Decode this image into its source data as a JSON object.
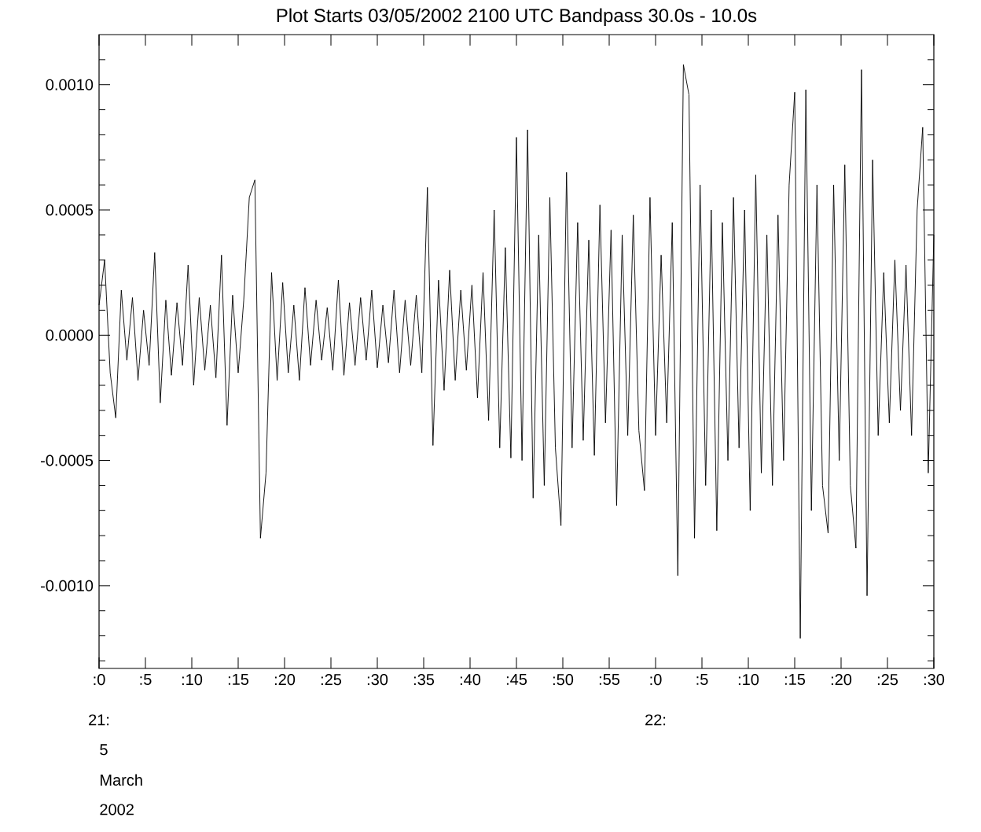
{
  "chart_data": {
    "type": "line",
    "title": "Plot Starts 03/05/2002 2100 UTC Bandpass 30.0s - 10.0s",
    "x": [
      "2002-03-05T21:00:00",
      "2002-03-05T21:00:36",
      "2002-03-05T21:01:12",
      "2002-03-05T21:01:48",
      "2002-03-05T21:02:24",
      "2002-03-05T21:03:00",
      "2002-03-05T21:03:36",
      "2002-03-05T21:04:12",
      "2002-03-05T21:04:48",
      "2002-03-05T21:05:24",
      "2002-03-05T21:06:00",
      "2002-03-05T21:06:36",
      "2002-03-05T21:07:12",
      "2002-03-05T21:07:48",
      "2002-03-05T21:08:24",
      "2002-03-05T21:09:00",
      "2002-03-05T21:09:36",
      "2002-03-05T21:10:12",
      "2002-03-05T21:10:48",
      "2002-03-05T21:11:24",
      "2002-03-05T21:12:00",
      "2002-03-05T21:12:36",
      "2002-03-05T21:13:12",
      "2002-03-05T21:13:48",
      "2002-03-05T21:14:24",
      "2002-03-05T21:15:00",
      "2002-03-05T21:15:36",
      "2002-03-05T21:16:12",
      "2002-03-05T21:16:48",
      "2002-03-05T21:17:24",
      "2002-03-05T21:18:00",
      "2002-03-05T21:18:36",
      "2002-03-05T21:19:12",
      "2002-03-05T21:19:48",
      "2002-03-05T21:20:24",
      "2002-03-05T21:21:00",
      "2002-03-05T21:21:36",
      "2002-03-05T21:22:12",
      "2002-03-05T21:22:48",
      "2002-03-05T21:23:24",
      "2002-03-05T21:24:00",
      "2002-03-05T21:24:36",
      "2002-03-05T21:25:12",
      "2002-03-05T21:25:48",
      "2002-03-05T21:26:24",
      "2002-03-05T21:27:00",
      "2002-03-05T21:27:36",
      "2002-03-05T21:28:12",
      "2002-03-05T21:28:48",
      "2002-03-05T21:29:24",
      "2002-03-05T21:30:00",
      "2002-03-05T21:30:36",
      "2002-03-05T21:31:12",
      "2002-03-05T21:31:48",
      "2002-03-05T21:32:24",
      "2002-03-05T21:33:00",
      "2002-03-05T21:33:36",
      "2002-03-05T21:34:12",
      "2002-03-05T21:34:48",
      "2002-03-05T21:35:24",
      "2002-03-05T21:36:00",
      "2002-03-05T21:36:36",
      "2002-03-05T21:37:12",
      "2002-03-05T21:37:48",
      "2002-03-05T21:38:24",
      "2002-03-05T21:39:00",
      "2002-03-05T21:39:36",
      "2002-03-05T21:40:12",
      "2002-03-05T21:40:48",
      "2002-03-05T21:41:24",
      "2002-03-05T21:42:00",
      "2002-03-05T21:42:36",
      "2002-03-05T21:43:12",
      "2002-03-05T21:43:48",
      "2002-03-05T21:44:24",
      "2002-03-05T21:45:00",
      "2002-03-05T21:45:36",
      "2002-03-05T21:46:12",
      "2002-03-05T21:46:48",
      "2002-03-05T21:47:24",
      "2002-03-05T21:48:00",
      "2002-03-05T21:48:36",
      "2002-03-05T21:49:12",
      "2002-03-05T21:49:48",
      "2002-03-05T21:50:24",
      "2002-03-05T21:51:00",
      "2002-03-05T21:51:36",
      "2002-03-05T21:52:12",
      "2002-03-05T21:52:48",
      "2002-03-05T21:53:24",
      "2002-03-05T21:54:00",
      "2002-03-05T21:54:36",
      "2002-03-05T21:55:12",
      "2002-03-05T21:55:48",
      "2002-03-05T21:56:24",
      "2002-03-05T21:57:00",
      "2002-03-05T21:57:36",
      "2002-03-05T21:58:12",
      "2002-03-05T21:58:48",
      "2002-03-05T21:59:24",
      "2002-03-05T22:00:00",
      "2002-03-05T22:00:36",
      "2002-03-05T22:01:12",
      "2002-03-05T22:01:48",
      "2002-03-05T22:02:24",
      "2002-03-05T22:03:00",
      "2002-03-05T22:03:36",
      "2002-03-05T22:04:12",
      "2002-03-05T22:04:48",
      "2002-03-05T22:05:24",
      "2002-03-05T22:06:00",
      "2002-03-05T22:06:36",
      "2002-03-05T22:07:12",
      "2002-03-05T22:07:48",
      "2002-03-05T22:08:24",
      "2002-03-05T22:09:00",
      "2002-03-05T22:09:36",
      "2002-03-05T22:10:12",
      "2002-03-05T22:10:48",
      "2002-03-05T22:11:24",
      "2002-03-05T22:12:00",
      "2002-03-05T22:12:36",
      "2002-03-05T22:13:12",
      "2002-03-05T22:13:48",
      "2002-03-05T22:14:24",
      "2002-03-05T22:15:00",
      "2002-03-05T22:15:36",
      "2002-03-05T22:16:12",
      "2002-03-05T22:16:48",
      "2002-03-05T22:17:24",
      "2002-03-05T22:18:00",
      "2002-03-05T22:18:36",
      "2002-03-05T22:19:12",
      "2002-03-05T22:19:48",
      "2002-03-05T22:20:24",
      "2002-03-05T22:21:00",
      "2002-03-05T22:21:36",
      "2002-03-05T22:22:12",
      "2002-03-05T22:22:48",
      "2002-03-05T22:23:24",
      "2002-03-05T22:24:00",
      "2002-03-05T22:24:36",
      "2002-03-05T22:25:12",
      "2002-03-05T22:25:48",
      "2002-03-05T22:26:24",
      "2002-03-05T22:27:00",
      "2002-03-05T22:27:36",
      "2002-03-05T22:28:12",
      "2002-03-05T22:28:48",
      "2002-03-05T22:29:24",
      "2002-03-05T22:30:00"
    ],
    "series": [
      {
        "color": "#000000",
        "values": [
          0.00012,
          0.0003,
          -0.00015,
          -0.00033,
          0.00018,
          -0.0001,
          0.00015,
          -0.00018,
          0.0001,
          -0.00012,
          0.00033,
          -0.00027,
          0.00014,
          -0.00016,
          0.00013,
          -0.00012,
          0.00028,
          -0.0002,
          0.00015,
          -0.00014,
          0.00012,
          -0.00017,
          0.00032,
          -0.00036,
          0.00016,
          -0.00015,
          0.00014,
          0.00055,
          0.00062,
          -0.00081,
          -0.00055,
          0.00025,
          -0.00018,
          0.00021,
          -0.00015,
          0.00012,
          -0.00018,
          0.00019,
          -0.00012,
          0.00014,
          -0.0001,
          0.00011,
          -0.00014,
          0.00022,
          -0.00016,
          0.00013,
          -0.00012,
          0.00015,
          -0.0001,
          0.00018,
          -0.00013,
          0.00012,
          -0.00011,
          0.00018,
          -0.00015,
          0.00014,
          -0.00012,
          0.00016,
          -0.00015,
          0.00059,
          -0.00044,
          0.00022,
          -0.00022,
          0.00026,
          -0.00018,
          0.00018,
          -0.00014,
          0.0002,
          -0.00025,
          0.00025,
          -0.00034,
          0.0005,
          -0.00045,
          0.00035,
          -0.00049,
          0.00079,
          -0.0005,
          0.00082,
          -0.00065,
          0.0004,
          -0.0006,
          0.00055,
          -0.00045,
          -0.00076,
          0.00065,
          -0.00045,
          0.00045,
          -0.00042,
          0.00038,
          -0.00048,
          0.00052,
          -0.00035,
          0.00042,
          -0.00068,
          0.0004,
          -0.0004,
          0.00048,
          -0.00038,
          -0.00062,
          0.00055,
          -0.0004,
          0.00032,
          -0.00035,
          0.00045,
          -0.00096,
          0.00108,
          0.00096,
          -0.00081,
          0.0006,
          -0.0006,
          0.0005,
          -0.00078,
          0.00045,
          -0.0005,
          0.00055,
          -0.00045,
          0.0005,
          -0.0007,
          0.00064,
          -0.00055,
          0.0004,
          -0.0006,
          0.00048,
          -0.0005,
          0.0006,
          0.00097,
          -0.00121,
          0.00098,
          -0.0007,
          0.0006,
          -0.0006,
          -0.00079,
          0.0006,
          -0.0005,
          0.00068,
          -0.0006,
          -0.00085,
          0.00106,
          -0.00104,
          0.0007,
          -0.0004,
          0.00025,
          -0.00035,
          0.0003,
          -0.0003,
          0.00028,
          -0.0004,
          0.0005,
          0.00083,
          -0.00055,
          0.0004
        ]
      }
    ],
    "xlim": [
      "2002-03-05T21:00",
      "2002-03-05T22:30"
    ],
    "xticks": [
      {
        "value": "2002-03-05T21:00",
        "label": ":0"
      },
      {
        "value": "2002-03-05T21:05",
        "label": ":5"
      },
      {
        "value": "2002-03-05T21:10",
        "label": ":10"
      },
      {
        "value": "2002-03-05T21:15",
        "label": ":15"
      },
      {
        "value": "2002-03-05T21:20",
        "label": ":20"
      },
      {
        "value": "2002-03-05T21:25",
        "label": ":25"
      },
      {
        "value": "2002-03-05T21:30",
        "label": ":30"
      },
      {
        "value": "2002-03-05T21:35",
        "label": ":35"
      },
      {
        "value": "2002-03-05T21:40",
        "label": ":40"
      },
      {
        "value": "2002-03-05T21:45",
        "label": ":45"
      },
      {
        "value": "2002-03-05T21:50",
        "label": ":50"
      },
      {
        "value": "2002-03-05T21:55",
        "label": ":55"
      },
      {
        "value": "2002-03-05T22:00",
        "label": ":0"
      },
      {
        "value": "2002-03-05T22:05",
        "label": ":5"
      },
      {
        "value": "2002-03-05T22:10",
        "label": ":10"
      },
      {
        "value": "2002-03-05T22:15",
        "label": ":15"
      },
      {
        "value": "2002-03-05T22:20",
        "label": ":20"
      },
      {
        "value": "2002-03-05T22:25",
        "label": ":25"
      },
      {
        "value": "2002-03-05T22:30",
        "label": ":30"
      }
    ],
    "ylim": [
      -0.00133,
      0.0012
    ],
    "yticks": [
      {
        "value": -0.0013,
        "label": null
      },
      {
        "value": -0.0012,
        "label": null
      },
      {
        "value": -0.0011,
        "label": null
      },
      {
        "value": -0.001,
        "label": "-0.0010"
      },
      {
        "value": -0.0009,
        "label": null
      },
      {
        "value": -0.0008,
        "label": null
      },
      {
        "value": -0.0007,
        "label": null
      },
      {
        "value": -0.0006,
        "label": null
      },
      {
        "value": -0.0005,
        "label": "-0.0005"
      },
      {
        "value": -0.0004,
        "label": null
      },
      {
        "value": -0.0003,
        "label": null
      },
      {
        "value": -0.0002,
        "label": null
      },
      {
        "value": -0.0001,
        "label": null
      },
      {
        "value": 0,
        "label": "0.0000"
      },
      {
        "value": 0.0001,
        "label": null
      },
      {
        "value": 0.0002,
        "label": null
      },
      {
        "value": 0.0003,
        "label": null
      },
      {
        "value": 0.0004,
        "label": null
      },
      {
        "value": 0.0005,
        "label": "0.0005"
      },
      {
        "value": 0.0006,
        "label": null
      },
      {
        "value": 0.0007,
        "label": null
      },
      {
        "value": 0.0008,
        "label": null
      },
      {
        "value": 0.0009,
        "label": null
      },
      {
        "value": 0.001,
        "label": "0.0010"
      },
      {
        "value": 0.0011,
        "label": null
      }
    ],
    "annotations": [
      "21:",
      "22:",
      "5",
      "March",
      "2002"
    ],
    "grid": false,
    "marker": "none",
    "line_style": "solid"
  }
}
